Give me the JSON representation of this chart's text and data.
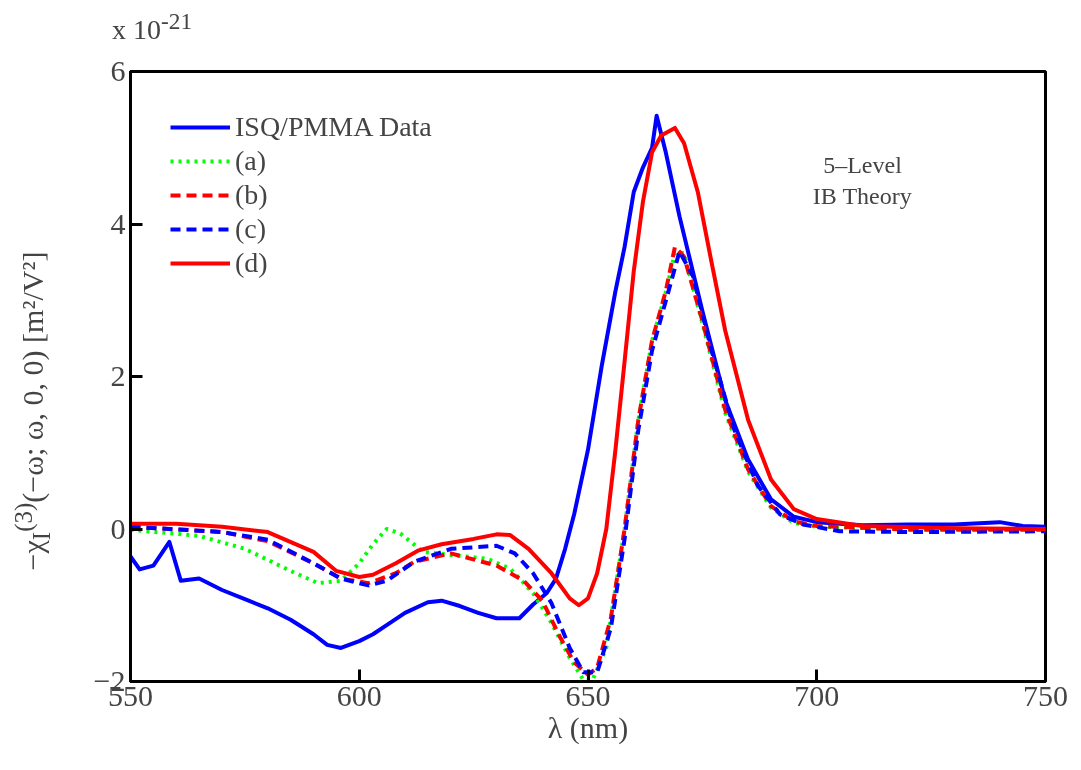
{
  "chart_data": {
    "type": "line",
    "xlabel": "λ (nm)",
    "ylabel": "−χ$_{I}$$^{(3)}$(−ω; ω, 0, 0) [m²/V²]",
    "xlim": [
      550,
      750
    ],
    "ylim": [
      -2,
      6
    ],
    "xticks": [
      550,
      600,
      650,
      700,
      750
    ],
    "yticks": [
      -2,
      0,
      2,
      4,
      6
    ],
    "grid": false,
    "legend": "top left",
    "annotations": [
      "x 10$^{-21}$",
      "5–Level\nIB Theory"
    ],
    "series": [
      {
        "name": "ISQ/PMMA Data",
        "color": "#0000ff",
        "line_style": "solid",
        "x": [
          550,
          552,
          555,
          558.5,
          561,
          565,
          570,
          575,
          580,
          585,
          590,
          593,
          596,
          600,
          603,
          606,
          610,
          615,
          618,
          622,
          626,
          630,
          635,
          638,
          641,
          643,
          645,
          647,
          650,
          653,
          656,
          658,
          660,
          662,
          664,
          665,
          667,
          670,
          675,
          680,
          685,
          690,
          695,
          700,
          710,
          720,
          730,
          740,
          745,
          750
        ],
        "values": [
          -0.36,
          -0.53,
          -0.48,
          -0.17,
          -0.68,
          -0.65,
          -0.8,
          -0.92,
          -1.04,
          -1.19,
          -1.38,
          -1.52,
          -1.56,
          -1.47,
          -1.38,
          -1.26,
          -1.1,
          -0.96,
          -0.94,
          -1.01,
          -1.1,
          -1.17,
          -1.17,
          -0.99,
          -0.84,
          -0.65,
          -0.26,
          0.2,
          1.04,
          2.14,
          3.12,
          3.7,
          4.42,
          4.74,
          5.0,
          5.42,
          4.94,
          4.1,
          2.86,
          1.69,
          0.91,
          0.39,
          0.16,
          0.09,
          0.05,
          0.06,
          0.06,
          0.09,
          0.04,
          0.03
        ]
      },
      {
        "name": "(a)",
        "color": "#00ff00",
        "line_style": "dotted",
        "x": [
          550,
          565,
          575,
          585,
          591,
          596,
          600,
          603,
          606,
          609,
          614,
          620,
          628,
          633,
          638,
          642,
          646,
          649,
          651,
          654,
          658,
          661,
          664,
          667,
          669,
          671,
          675,
          680,
          685,
          690,
          695,
          700,
          720,
          750
        ],
        "values": [
          -0.01,
          -0.09,
          -0.26,
          -0.55,
          -0.71,
          -0.68,
          -0.45,
          -0.2,
          0.0,
          -0.06,
          -0.3,
          -0.34,
          -0.39,
          -0.52,
          -0.84,
          -1.23,
          -1.69,
          -1.98,
          -1.98,
          -1.56,
          0.0,
          1.43,
          2.47,
          3.1,
          3.62,
          3.62,
          2.7,
          1.52,
          0.75,
          0.28,
          0.08,
          0.03,
          0.0,
          0.0
        ]
      },
      {
        "name": "(b)",
        "color": "#ff0000",
        "line_style": "dashed",
        "x": [
          550,
          570,
          580,
          590,
          596,
          602,
          608,
          612,
          620,
          630,
          636,
          640,
          644,
          647,
          650,
          652,
          655,
          658,
          661,
          664,
          667,
          669,
          671,
          675,
          680,
          685,
          690,
          695,
          700,
          720,
          750
        ],
        "values": [
          0.03,
          -0.04,
          -0.16,
          -0.45,
          -0.65,
          -0.71,
          -0.58,
          -0.43,
          -0.32,
          -0.48,
          -0.68,
          -0.94,
          -1.43,
          -1.75,
          -1.91,
          -1.82,
          -1.17,
          0.0,
          1.43,
          2.47,
          3.12,
          3.7,
          3.57,
          2.73,
          1.56,
          0.78,
          0.3,
          0.1,
          0.04,
          -0.01,
          -0.01
        ]
      },
      {
        "name": "(c)",
        "color": "#0000ff",
        "line_style": "dashed",
        "x": [
          550,
          570,
          580,
          590,
          596,
          602,
          606,
          612,
          620,
          630,
          634,
          638,
          642,
          646,
          649,
          652,
          655,
          658,
          661,
          664,
          667,
          670,
          673,
          677,
          682,
          687,
          692,
          697,
          705,
          720,
          750
        ],
        "values": [
          0.03,
          -0.04,
          -0.14,
          -0.45,
          -0.65,
          -0.74,
          -0.68,
          -0.43,
          -0.26,
          -0.22,
          -0.32,
          -0.58,
          -0.97,
          -1.56,
          -1.88,
          -1.88,
          -1.3,
          -0.13,
          1.3,
          2.34,
          2.99,
          3.64,
          3.31,
          2.34,
          1.3,
          0.58,
          0.19,
          0.06,
          -0.03,
          -0.04,
          -0.03
        ]
      },
      {
        "name": "(d)",
        "color": "#ff0000",
        "line_style": "solid",
        "x": [
          550,
          560,
          570,
          580,
          590,
          595,
          600,
          603,
          608,
          613,
          618,
          625,
          630,
          633,
          637,
          642,
          646,
          648,
          650,
          652,
          654,
          656,
          658,
          660,
          662,
          664,
          666,
          669,
          671,
          674,
          677,
          680,
          685,
          690,
          695,
          700,
          710,
          730,
          750
        ],
        "values": [
          0.07,
          0.07,
          0.03,
          -0.04,
          -0.3,
          -0.55,
          -0.63,
          -0.6,
          -0.45,
          -0.28,
          -0.2,
          -0.13,
          -0.07,
          -0.08,
          -0.26,
          -0.58,
          -0.91,
          -1.0,
          -0.91,
          -0.58,
          0.0,
          1.04,
          2.2,
          3.38,
          4.29,
          4.94,
          5.16,
          5.26,
          5.06,
          4.42,
          3.5,
          2.6,
          1.43,
          0.65,
          0.26,
          0.13,
          0.04,
          0.01,
          0.0
        ]
      }
    ]
  }
}
